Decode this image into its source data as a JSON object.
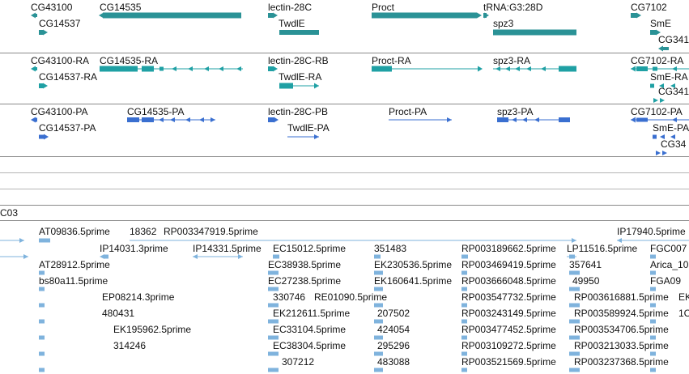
{
  "colors": {
    "gene": "#2a9296",
    "transcript": "#1fa0a4",
    "protein": "#3a6fd0",
    "est": "#7fb3dd",
    "separator": "#8a8a8a"
  },
  "gene_track": {
    "labels": [
      "CG43100",
      "CG14537",
      "CG14535",
      "lectin-28C",
      "TwdlE",
      "Proct",
      "tRNA:G3:28D",
      "spz3",
      "CG7102",
      "SmE",
      "CG341"
    ]
  },
  "transcript_track": {
    "labels": [
      "CG43100-RA",
      "CG14537-RA",
      "CG14535-RA",
      "lectin-28C-RB",
      "TwdlE-RA",
      "Proct-RA",
      "spz3-RA",
      "CG7102-RA",
      "SmE-RA",
      "CG341"
    ]
  },
  "protein_track": {
    "labels": [
      "CG43100-PA",
      "CG14537-PA",
      "CG14535-PA",
      "lectin-28C-PB",
      "TwdlE-PA",
      "Proct-PA",
      "spz3-PA",
      "CG7102-PA",
      "SmE-PA",
      "CG34"
    ]
  },
  "section_label": "C03",
  "est_track": {
    "labels": [
      "AT09836.5prime",
      "18362",
      "RP003347919.5prime",
      "IP17940.5prime",
      "IP14031.3prime",
      "IP14331.5prime",
      "EC15012.5prime",
      "351483",
      "RP003189662.5prime",
      "LP11516.5prime",
      "FGC007",
      "AT28912.5prime",
      "EC38938.5prime",
      "EK230536.5prime",
      "RP003469419.5prime",
      "357641",
      "Arica_10",
      "bs80a11.5prime",
      "EC27238.5prime",
      "EK160641.5prime",
      "RP003666048.5prime",
      "49950",
      "FGA09",
      "EP08214.3prime",
      "330746",
      "RE01090.5prime",
      "RP003547732.5prime",
      "RP003616881.5prime",
      "EK",
      "480431",
      "EK212611.5prime",
      "207502",
      "RP003243149.5prime",
      "RP003589924.5prime",
      "1C",
      "EK195962.5prime",
      "EC33104.5prime",
      "424054",
      "RP003477452.5prime",
      "RP003534706.5prime",
      "314246",
      "EC38304.5prime",
      "295296",
      "RP003109272.5prime",
      "RP003213033.5prime",
      "307212",
      "483088",
      "RP003521569.5prime",
      "RP003237368.5prime"
    ]
  }
}
